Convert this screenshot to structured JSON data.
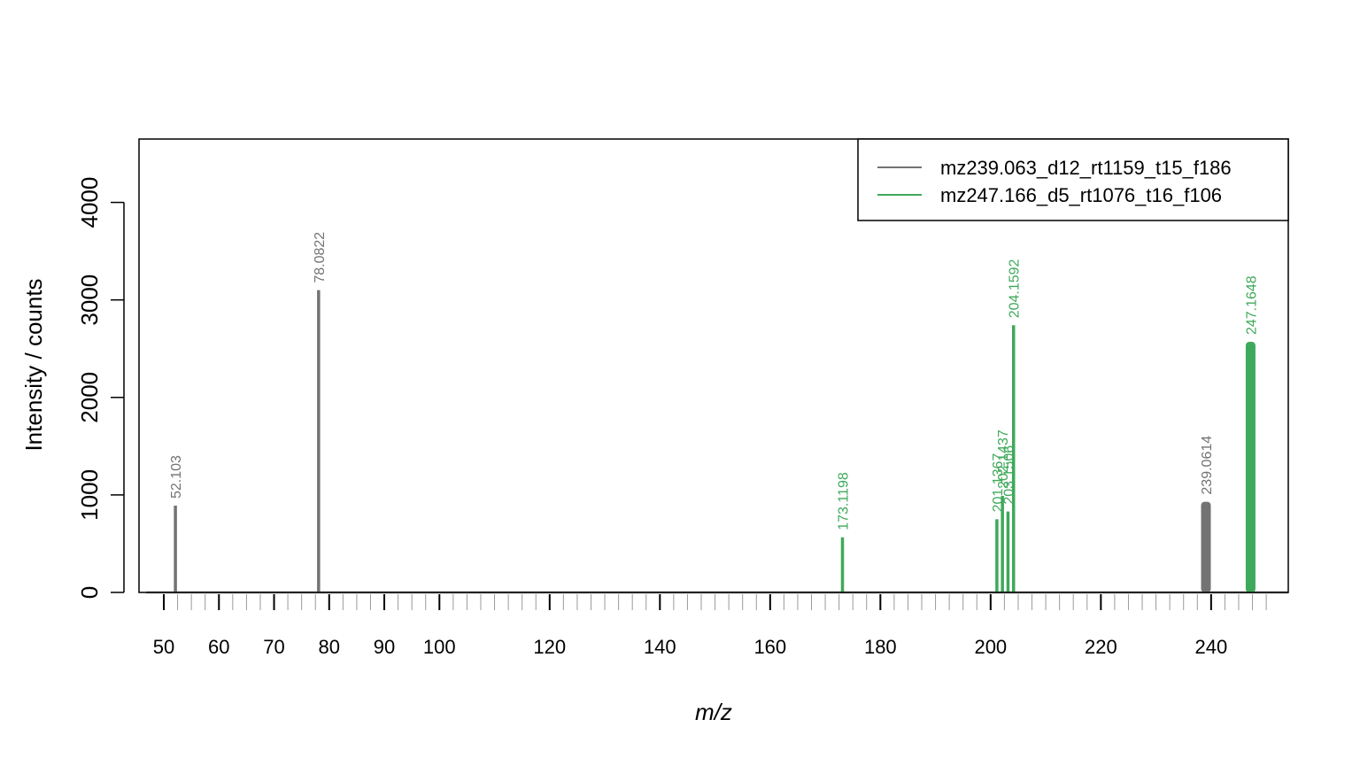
{
  "chart_data": {
    "type": "bar",
    "title": "",
    "xlabel": "m/z",
    "ylabel": "Intensity / counts",
    "xlim": [
      45.5,
      254
    ],
    "ylim": [
      0,
      4650
    ],
    "x_ticks": [
      50,
      60,
      70,
      80,
      90,
      100,
      120,
      140,
      160,
      180,
      200,
      220,
      240
    ],
    "y_ticks": [
      0,
      1000,
      2000,
      3000,
      4000
    ],
    "minor_x_ticks": {
      "start": 50,
      "end": 252,
      "step": 2.5
    },
    "grid": false,
    "legend_position": "top-right",
    "series": [
      {
        "name": "mz239.063_d12_rt1159_t15_f186",
        "color": "#737373",
        "peaks": [
          {
            "mz": 52.103,
            "intensity": 890,
            "label": "52.103"
          },
          {
            "mz": 78.0822,
            "intensity": 3100,
            "label": "78.0822"
          },
          {
            "mz": 239.0614,
            "intensity": 930,
            "label": "239.0614",
            "bold": true
          }
        ]
      },
      {
        "name": "mz247.166_d5_rt1076_t16_f106",
        "color": "#3fa95b",
        "peaks": [
          {
            "mz": 173.1198,
            "intensity": 565,
            "label": "173.1198"
          },
          {
            "mz": 201.1367,
            "intensity": 750,
            "label": "201.1367"
          },
          {
            "mz": 202.1437,
            "intensity": 990,
            "label": "202.1437"
          },
          {
            "mz": 203.1506,
            "intensity": 830,
            "label": "203.1506"
          },
          {
            "mz": 204.1592,
            "intensity": 2740,
            "label": "204.1592"
          },
          {
            "mz": 247.1648,
            "intensity": 2570,
            "label": "247.1648",
            "bold": true
          }
        ]
      }
    ]
  }
}
